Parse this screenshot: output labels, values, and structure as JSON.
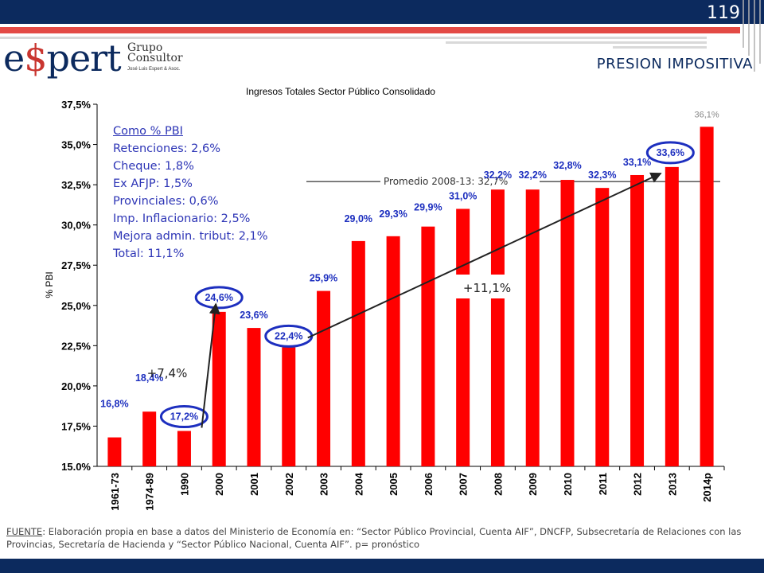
{
  "slide": {
    "number": "119",
    "title": "PRESION IMPOSITIVA"
  },
  "logo": {
    "main_pre": "e",
    "main_symbol": "$",
    "main_post": "pert",
    "line1": "Grupo",
    "line2": "Consultor",
    "tagline": "José Luis Espert & Asoc."
  },
  "colors": {
    "navy": "#0c2a5e",
    "bar": "#ff0000",
    "label_blue": "#1d2fbf",
    "info_blue": "#2d35b6"
  },
  "footer": {
    "source_label": "FUENTE",
    "text": ": Elaboración propia en base a datos del Ministerio de Economía en: “Sector Público Provincial, Cuenta AIF”, DNCFP, Subsecretaría de Relaciones con las Provincias, Secretaría de Hacienda y  “Sector Público Nacional, Cuenta AIF”.   p= pronóstico"
  },
  "info_box": {
    "header": "Como % PBI",
    "lines": [
      "Retenciones: 2,6%",
      "Cheque: 1,8%",
      "Ex AFJP: 1,5%",
      "Provinciales: 0,6%",
      "Imp. Inflacionario: 2,5%",
      "Mejora admin. tribut: 2,1%",
      "Total: 11,1%"
    ]
  },
  "chart_data": {
    "type": "bar",
    "title": "Ingresos Totales Sector Público Consolidado",
    "ylabel": "% PBI",
    "xlabel": "",
    "ylim": [
      15.0,
      37.5
    ],
    "ytick_labels": [
      "15.0%",
      "17,5%",
      "20,0%",
      "22,5%",
      "25,0%",
      "27,5%",
      "30,0%",
      "32,5%",
      "35,0%",
      "37,5%"
    ],
    "categories": [
      "1961-73",
      "1974-89",
      "1990",
      "2000",
      "2001",
      "2002",
      "2003",
      "2004",
      "2005",
      "2006",
      "2007",
      "2008",
      "2009",
      "2010",
      "2011",
      "2012",
      "2013",
      "2014p"
    ],
    "values": [
      16.8,
      18.4,
      17.2,
      24.6,
      23.6,
      22.4,
      25.9,
      29.0,
      29.3,
      29.9,
      31.0,
      32.2,
      32.2,
      32.8,
      32.3,
      33.1,
      33.6,
      36.1
    ],
    "data_labels": [
      "16,8%",
      "18,4%",
      "17,2%",
      "24,6%",
      "23,6%",
      "22,4%",
      "25,9%",
      "29,0%",
      "29,3%",
      "29,9%",
      "31,0%",
      "32,2%",
      "32,2%",
      "32,8%",
      "32,3%",
      "33,1%",
      "33,6%",
      "36,1%"
    ],
    "circled_categories": [
      "1990",
      "2000",
      "2002",
      "2013"
    ],
    "average_line": {
      "label": "Promedio 2008-13: 32,7%",
      "value": 32.7
    },
    "annotations": [
      {
        "text": "+7,4%",
        "from": "1990",
        "to": "2000"
      },
      {
        "text": "+11,1%",
        "from": "2002",
        "to": "2013"
      }
    ],
    "grid": false,
    "legend": "none"
  }
}
